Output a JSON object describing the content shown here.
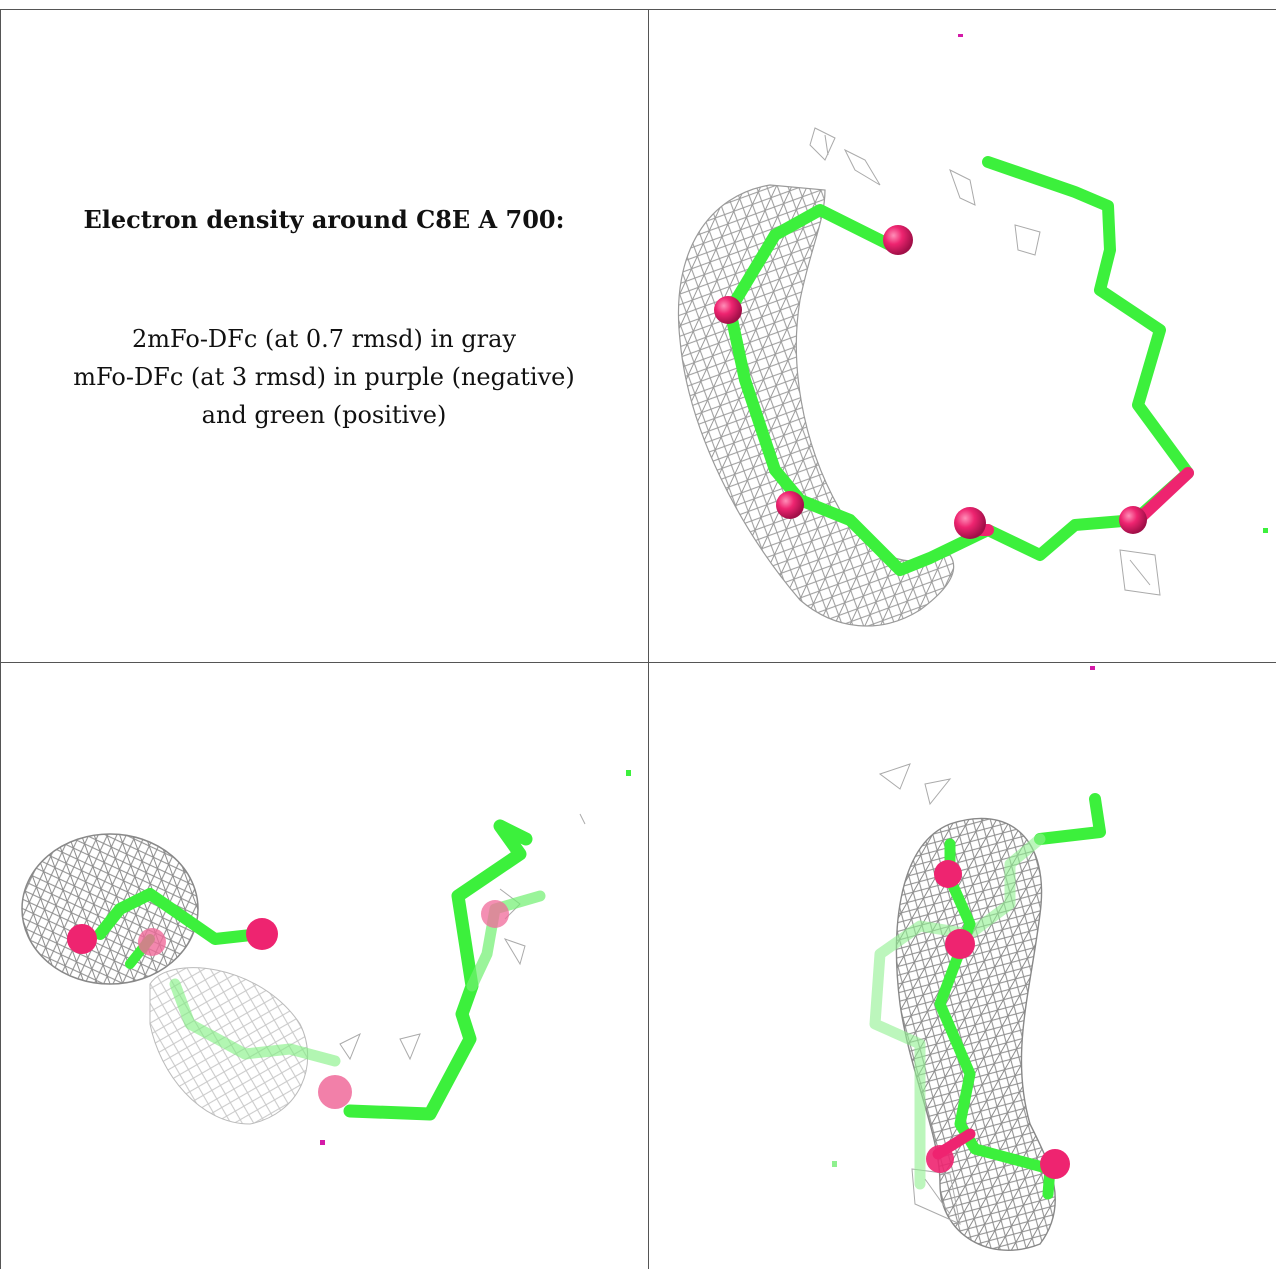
{
  "caption": {
    "title": "Electron density around C8E A 700:",
    "line1": "2mFo-DFc (at 0.7 rmsd) in gray",
    "line2": "mFo-DFc (at 3 rmsd) in purple (negative)",
    "line3": "and green (positive)"
  },
  "colors": {
    "carbon": "#3cf03c",
    "oxygen": "#ee2470",
    "mesh": "#9a9a9a",
    "positive_density": "#3cf03c",
    "negative_density": "#d41aa8",
    "border": "#555555"
  }
}
